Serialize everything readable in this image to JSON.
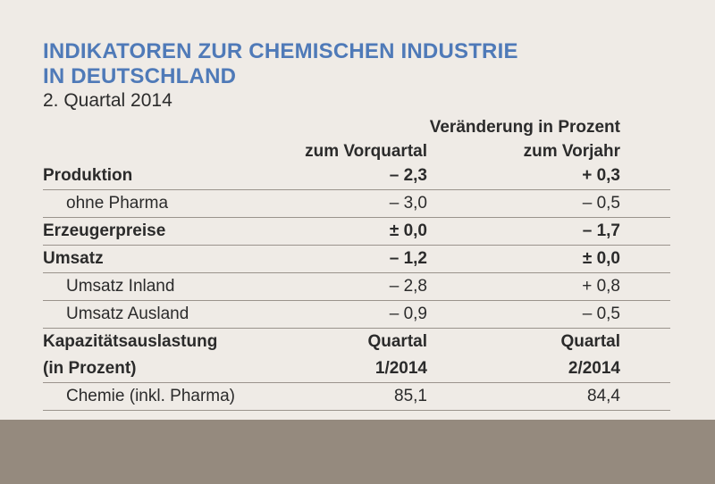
{
  "title_line1": "INDIKATOREN ZUR CHEMISCHEN INDUSTRIE",
  "title_line2": "IN DEUTSCHLAND",
  "subtitle": "2. Quartal 2014",
  "header": {
    "main": "Veränderung in Prozent",
    "col1": "zum Vorquartal",
    "col2": "zum Vorjahr"
  },
  "rows": [
    {
      "label": "Produktion",
      "v1": "– 2,3",
      "v2": "+ 0,3"
    },
    {
      "label": "ohne Pharma",
      "v1": "– 3,0",
      "v2": "– 0,5"
    },
    {
      "label": "Erzeugerpreise",
      "v1": "±  0,0",
      "v2": "– 1,7"
    },
    {
      "label": "Umsatz",
      "v1": "– 1,2",
      "v2": "±  0,0"
    },
    {
      "label": "Umsatz Inland",
      "v1": "– 2,8",
      "v2": "+ 0,8"
    },
    {
      "label": "Umsatz Ausland",
      "v1": "– 0,9",
      "v2": "– 0,5"
    },
    {
      "label": "Kapazitätsauslastung",
      "v1": "Quartal",
      "v2": "Quartal"
    },
    {
      "label": "(in Prozent)",
      "v1": "1/2014",
      "v2": "2/2014"
    },
    {
      "label": "Chemie (inkl. Pharma)",
      "v1": "85,1",
      "v2": "84,4"
    }
  ],
  "colors": {
    "title": "#4f7ab8",
    "background": "#efebe6",
    "footer_band": "#958a7e",
    "rule": "#9a938c"
  }
}
